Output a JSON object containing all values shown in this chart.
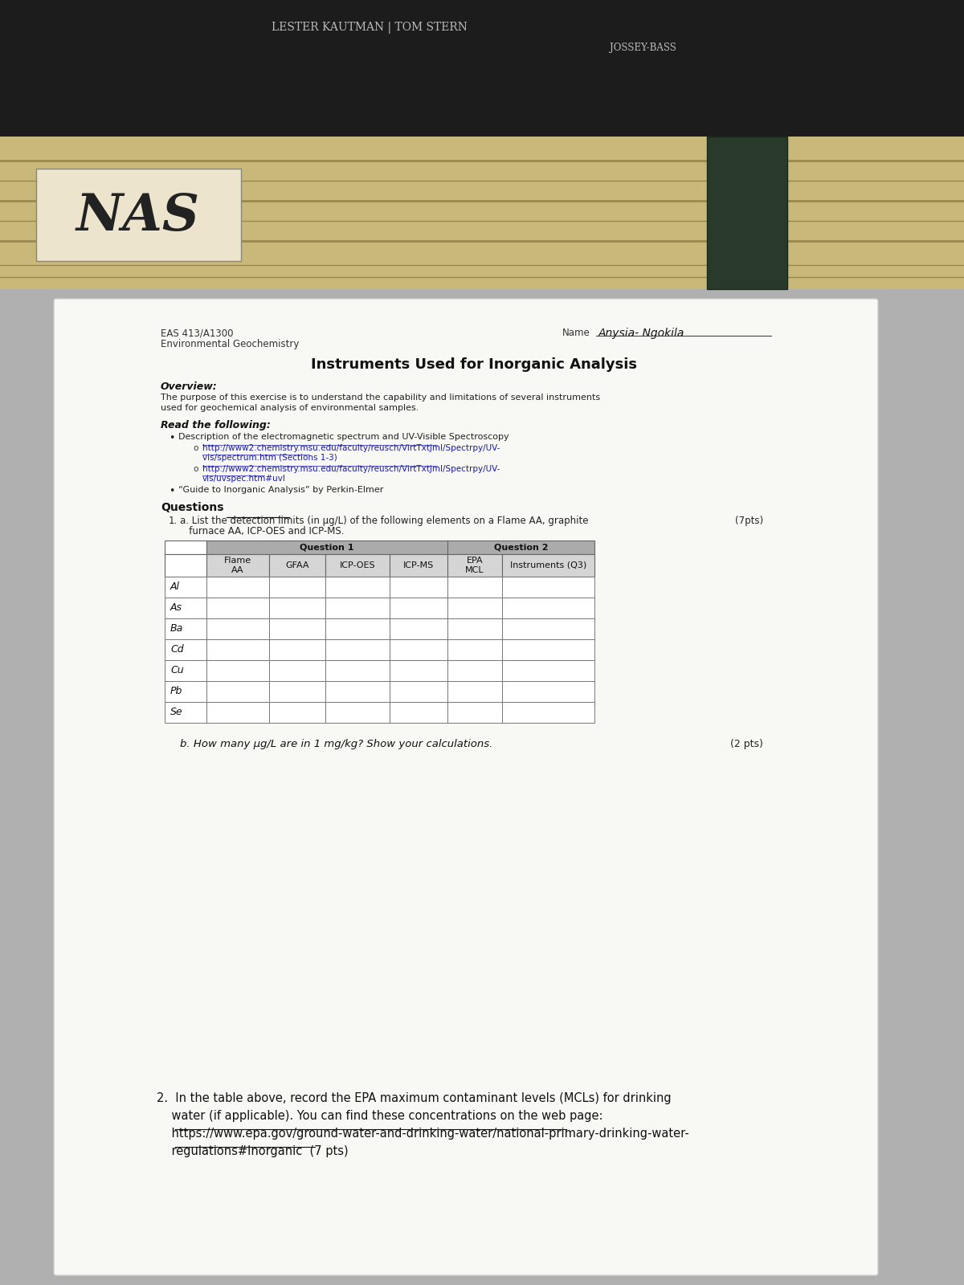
{
  "header_text1": "LESTER KAUTMAN | TOM STERN",
  "header_text2": "JOSSEY-BASS",
  "nas_text": "NAS",
  "course_code": "EAS 413/A1300",
  "course_name": "Environmental Geochemistry",
  "name_label": "Name",
  "student_name": "Anysia- Ngokila",
  "title": "Instruments Used for Inorganic Analysis",
  "overview_label": "Overview:",
  "overview_line1": "The purpose of this exercise is to understand the capability and limitations of several instruments",
  "overview_line2": "used for geochemical analysis of environmental samples.",
  "read_label": "Read the following:",
  "bullet1": "Description of the electromagnetic spectrum and UV-Visible Spectroscopy",
  "url1a_line1": "http://www2.chemistry.msu.edu/faculty/reusch/VirtTxtJml/Spectrpy/UV-",
  "url1a_line2": "vis/spectrum.htm (Sections 1-3)",
  "url1b_line1": "http://www2.chemistry.msu.edu/faculty/reusch/VirtTxtJml/Spectrpy/UV-",
  "url1b_line2": "vis/uvspec.htm#uvl",
  "bullet2": "“Guide to Inorganic Analysis” by Perkin-Elmer",
  "questions_label": "Questions",
  "q1_line1": "a. List the detection limits (in μg/L) of the following elements on a Flame AA, graphite",
  "q1_line2": "   furnace AA, ICP-OES and ICP-MS.",
  "q1_pts": "(7pts)",
  "table_col_headers": [
    "",
    "Flame\nAA",
    "GFAA",
    "ICP-OES",
    "ICP-MS",
    "EPA\nMCL",
    "Instruments (Q3)"
  ],
  "table_rows": [
    "Al",
    "As",
    "Ba",
    "Cd",
    "Cu",
    "Pb",
    "Se"
  ],
  "q1_group_header": "Question 1",
  "q2_group_header": "Question 2",
  "q1b_text": "b. How many μg/L are in 1 mg/kg? Show your calculations.",
  "q1b_pts": "(2 pts)",
  "q2_line1": "2.  In the table above, record the EPA maximum contaminant levels (MCLs) for drinking",
  "q2_line2": "    water (if applicable). You can find these concentrations on the web page:",
  "q2_line3": "    https://www.epa.gov/ground-water-and-drinking-water/national-primary-drinking-water-",
  "q2_line4": "    regulations#Inorganic  (7 pts)"
}
